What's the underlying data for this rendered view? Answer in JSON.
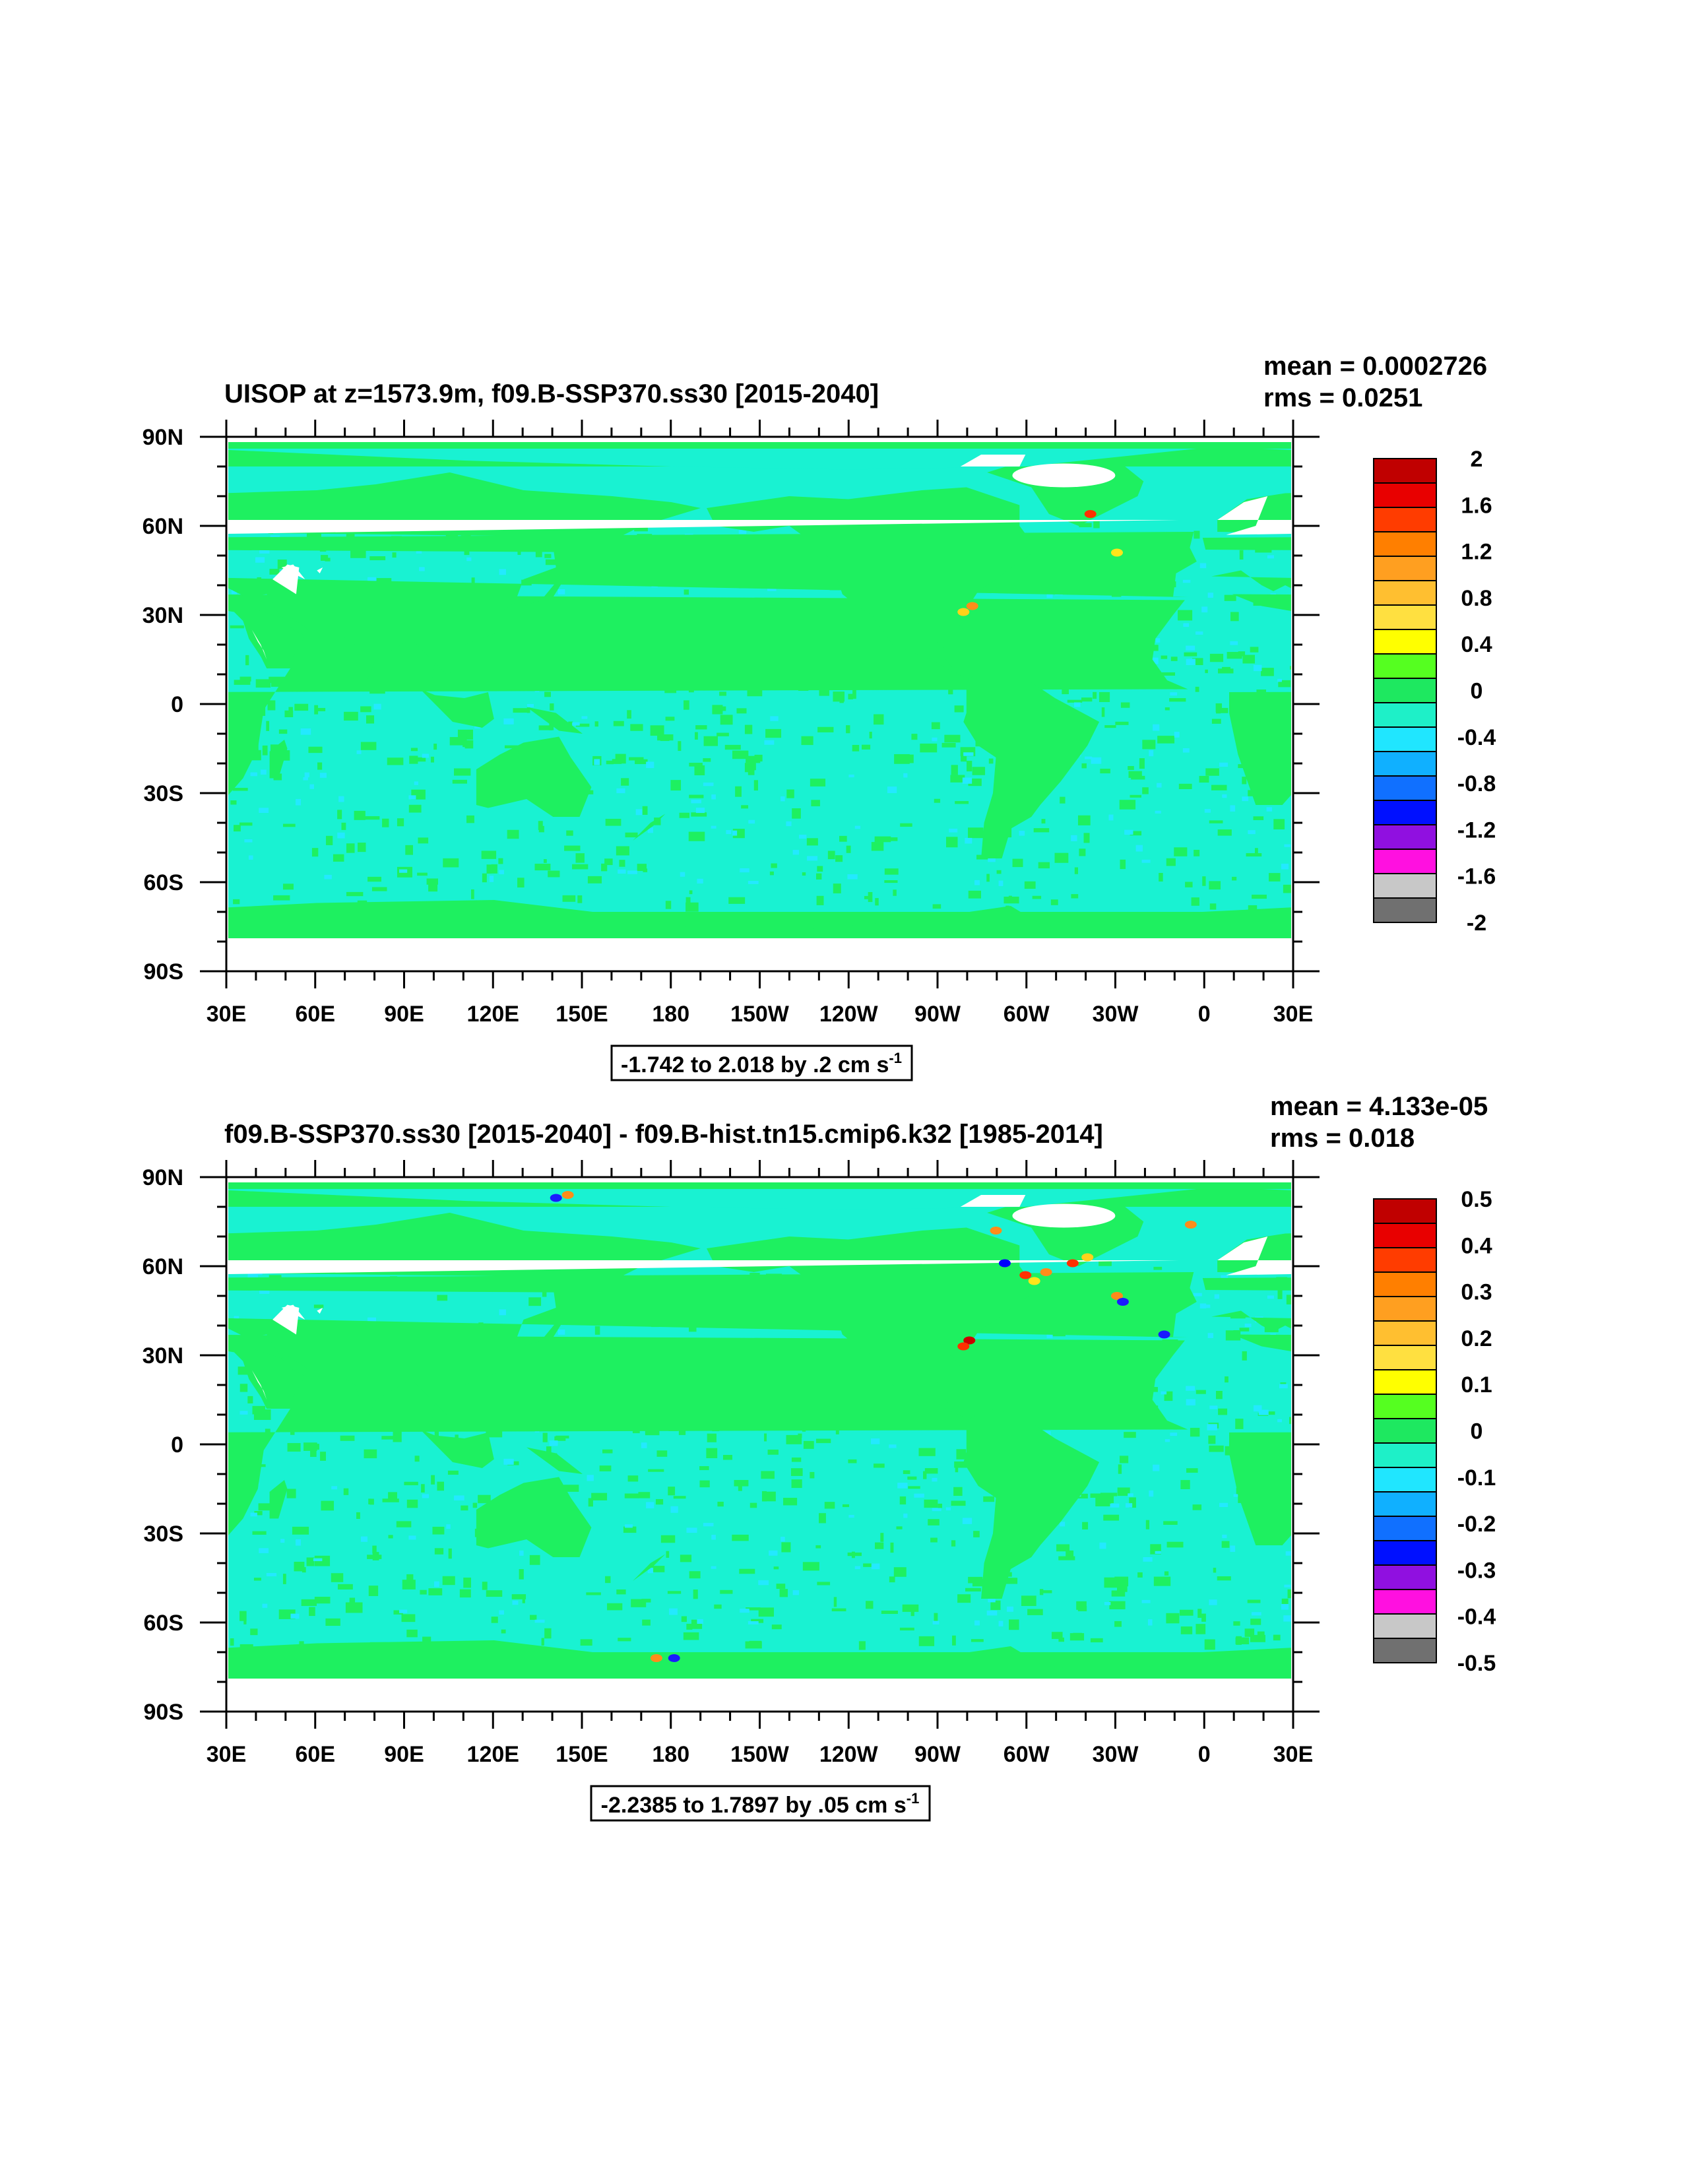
{
  "chart_data": [
    {
      "type": "heatmap",
      "title": "UISOP at z=1573.9m, f09.B-SSP370.ss30 [2015-2040]",
      "stats": {
        "mean": "mean = 0.0002726",
        "rms": "rms = 0.0251"
      },
      "range_label": {
        "text": "-1.742 to 2.018 by .2 cm s",
        "sup": "-1"
      },
      "x_ticks": [
        "30E",
        "60E",
        "90E",
        "120E",
        "150E",
        "180",
        "150W",
        "120W",
        "90W",
        "60W",
        "30W",
        "0",
        "30E"
      ],
      "y_ticks": [
        "90N",
        "60N",
        "30N",
        "0",
        "30S",
        "60S",
        "90S"
      ],
      "xlim": [
        30,
        390
      ],
      "ylim": [
        -90,
        90
      ],
      "colorbar_labels": [
        "2",
        "1.6",
        "1.2",
        "0.8",
        "0.4",
        "0",
        "-0.4",
        "-0.8",
        "-1.2",
        "-1.6",
        "-2"
      ],
      "features": [
        {
          "lon": 322,
          "lat": 64,
          "color": "#ff3000"
        },
        {
          "lon": 282,
          "lat": 33,
          "color": "#ff8c1a"
        },
        {
          "lon": 279,
          "lat": 31,
          "color": "#ffd21a"
        },
        {
          "lon": 331,
          "lat": 51,
          "color": "#ffe51a"
        }
      ]
    },
    {
      "type": "heatmap",
      "title": "f09.B-SSP370.ss30 [2015-2040] - f09.B-hist.tn15.cmip6.k32 [1985-2014]",
      "stats": {
        "mean": "mean = 4.133e-05",
        "rms": "rms = 0.018"
      },
      "range_label": {
        "text": "-2.2385 to 1.7897 by .05 cm s",
        "sup": "-1"
      },
      "x_ticks": [
        "30E",
        "60E",
        "90E",
        "120E",
        "150E",
        "180",
        "150W",
        "120W",
        "90W",
        "60W",
        "30W",
        "0",
        "30E"
      ],
      "y_ticks": [
        "90N",
        "60N",
        "30N",
        "0",
        "30S",
        "60S",
        "90S"
      ],
      "xlim": [
        30,
        390
      ],
      "ylim": [
        -90,
        90
      ],
      "colorbar_labels": [
        "0.5",
        "0.4",
        "0.3",
        "0.2",
        "0.1",
        "0",
        "-0.1",
        "-0.2",
        "-0.3",
        "-0.4",
        "-0.5"
      ],
      "features": [
        {
          "lon": 141,
          "lat": 83,
          "color": "#1a1aff"
        },
        {
          "lon": 145,
          "lat": 84,
          "color": "#ff8c1a"
        },
        {
          "lon": 290,
          "lat": 72,
          "color": "#ff8c1a"
        },
        {
          "lon": 293,
          "lat": 61,
          "color": "#0000ff"
        },
        {
          "lon": 300,
          "lat": 57,
          "color": "#ff3000"
        },
        {
          "lon": 303,
          "lat": 55,
          "color": "#ffe51a"
        },
        {
          "lon": 307,
          "lat": 58,
          "color": "#ff8c1a"
        },
        {
          "lon": 316,
          "lat": 61,
          "color": "#ff3000"
        },
        {
          "lon": 321,
          "lat": 63,
          "color": "#ffd21a"
        },
        {
          "lon": 331,
          "lat": 50,
          "color": "#ff8c1a"
        },
        {
          "lon": 333,
          "lat": 48,
          "color": "#1a1aff"
        },
        {
          "lon": 356,
          "lat": 74,
          "color": "#ff8c1a"
        },
        {
          "lon": 281,
          "lat": 35,
          "color": "#cc0000"
        },
        {
          "lon": 279,
          "lat": 33,
          "color": "#ff3000"
        },
        {
          "lon": 347,
          "lat": 37,
          "color": "#1a1aff"
        },
        {
          "lon": 175,
          "lat": -72,
          "color": "#ff8c1a"
        },
        {
          "lon": 181,
          "lat": -72,
          "color": "#1a1aff"
        }
      ]
    }
  ],
  "colors": {
    "land": "#1ef060",
    "ocean": "#19f2d2",
    "ocean_light": "#23e9ff",
    "missing": "#ffffff",
    "colorbar": [
      "#c00000",
      "#e80000",
      "#ff3c00",
      "#ff7f00",
      "#ff9f20",
      "#ffbf30",
      "#ffe040",
      "#ffff00",
      "#55ff20",
      "#1ee860",
      "#1ef0c8",
      "#20e6ff",
      "#10b0ff",
      "#1070ff",
      "#0010ff",
      "#9010e0",
      "#ff10e0",
      "#c8c8c8",
      "#707070"
    ]
  }
}
